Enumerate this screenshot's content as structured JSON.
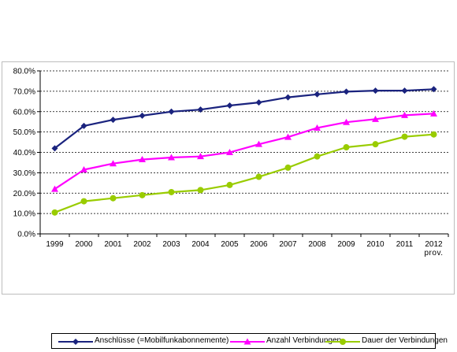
{
  "chart_data": {
    "type": "line",
    "categories": [
      "1999",
      "2000",
      "2001",
      "2002",
      "2003",
      "2004",
      "2005",
      "2006",
      "2007",
      "2008",
      "2009",
      "2010",
      "2011",
      "2012"
    ],
    "category_sublabels": [
      "",
      "",
      "",
      "",
      "",
      "",
      "",
      "",
      "",
      "",
      "",
      "",
      "",
      "prov."
    ],
    "ylim": [
      0,
      0.8
    ],
    "yticks": [
      "0.0%",
      "10.0%",
      "20.0%",
      "30.0%",
      "40.0%",
      "50.0%",
      "60.0%",
      "70.0%",
      "80.0%"
    ],
    "grid": "horizontal dashed",
    "legend_position": "bottom",
    "series": [
      {
        "name": "Anschlüsse (=Mobilfunkabonnemente)",
        "color": "#1a237e",
        "marker": "diamond",
        "values": [
          0.42,
          0.53,
          0.56,
          0.58,
          0.6,
          0.61,
          0.63,
          0.645,
          0.67,
          0.685,
          0.698,
          0.703,
          0.703,
          0.71
        ]
      },
      {
        "name": "Anzahl Verbindungen",
        "color": "#ff00ff",
        "marker": "triangle",
        "values": [
          0.22,
          0.315,
          0.345,
          0.365,
          0.375,
          0.38,
          0.4,
          0.44,
          0.475,
          0.52,
          0.548,
          0.563,
          0.582,
          0.59
        ]
      },
      {
        "name": "Dauer der Verbindungen",
        "color": "#99cc00",
        "marker": "circle",
        "values": [
          0.105,
          0.16,
          0.175,
          0.19,
          0.205,
          0.215,
          0.24,
          0.28,
          0.325,
          0.38,
          0.425,
          0.44,
          0.477,
          0.488
        ]
      }
    ]
  }
}
